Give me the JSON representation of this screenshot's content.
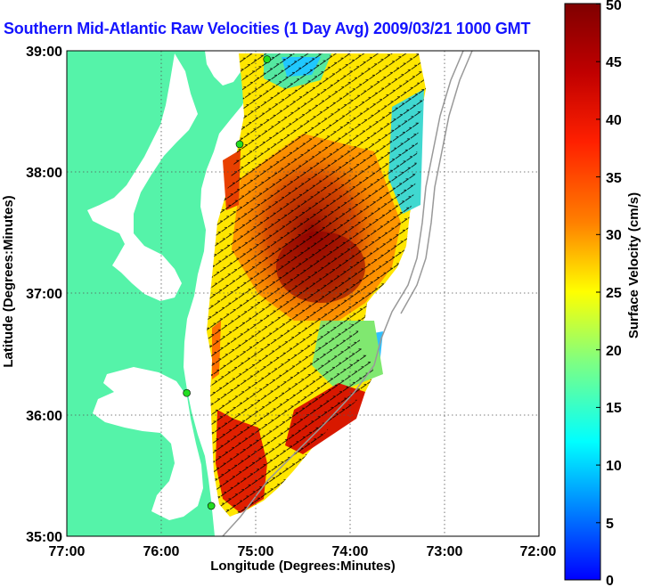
{
  "title": "Southern Mid-Atlantic Raw Velocities (1 Day Avg) 2009/03/21 1000 GMT",
  "x_axis": {
    "label": "Longitude (Degrees:Minutes)",
    "ticks": [
      "77:00",
      "76:00",
      "75:00",
      "74:00",
      "73:00",
      "72:00"
    ]
  },
  "y_axis": {
    "label": "Latitude (Degrees:Minutes)",
    "ticks": [
      "39:00",
      "38:00",
      "37:00",
      "36:00",
      "35:00"
    ]
  },
  "colorbar": {
    "label": "Surface Velocity (cm/s)",
    "ticks": [
      "50",
      "45",
      "40",
      "35",
      "30",
      "25",
      "20",
      "15",
      "10",
      "5",
      "0"
    ],
    "min": 0,
    "max": 50
  },
  "map": {
    "lon_range": [
      -77,
      -72
    ],
    "lat_range": [
      35,
      39
    ],
    "land_color": "#55f3a9",
    "water_color": "#ffffff",
    "station_color": "#22dd22",
    "stations": [
      {
        "lon": -74.88,
        "lat": 38.93
      },
      {
        "lon": -75.17,
        "lat": 38.23
      },
      {
        "lon": -75.73,
        "lat": 36.18
      },
      {
        "lon": -75.47,
        "lat": 35.25
      }
    ]
  },
  "colors": {
    "title": "#1414ff",
    "grid": "#555555",
    "vector": "#000000"
  }
}
